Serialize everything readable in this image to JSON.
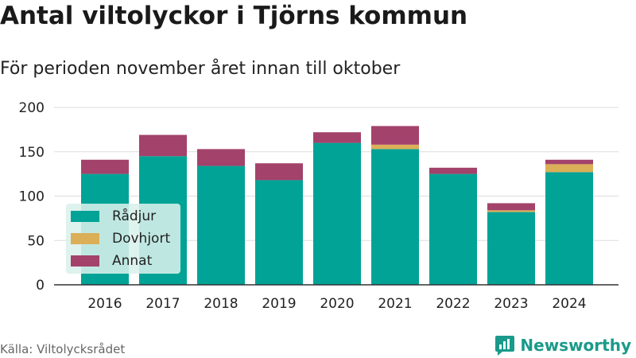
{
  "title": "Antal viltolyckor i Tjörns kommun",
  "subtitle": "För perioden november året innan till oktober",
  "source": "Källa: Viltolycksrådet",
  "brand": "Newsworthy",
  "colors": {
    "radjur": "#00a396",
    "dovhjort": "#dbaf57",
    "annat": "#a3426b",
    "grid": "#dddddd",
    "axis": "#333333",
    "brand": "#1a9a8a"
  },
  "chart_data": {
    "type": "bar",
    "stacked": true,
    "categories": [
      "2016",
      "2017",
      "2018",
      "2019",
      "2020",
      "2021",
      "2022",
      "2023",
      "2024"
    ],
    "series": [
      {
        "name": "Rådjur",
        "color": "#00a396",
        "values": [
          125,
          145,
          134,
          118,
          160,
          153,
          125,
          82,
          127
        ]
      },
      {
        "name": "Dovhjort",
        "color": "#dbaf57",
        "values": [
          0,
          0,
          0,
          0,
          0,
          5,
          0,
          2,
          9
        ]
      },
      {
        "name": "Annat",
        "color": "#a3426b",
        "values": [
          16,
          24,
          19,
          19,
          12,
          21,
          7,
          8,
          5
        ]
      }
    ],
    "ylim": [
      0,
      200
    ],
    "yticks": [
      0,
      50,
      100,
      150,
      200
    ],
    "grid": true,
    "legend_position": "bottom-left"
  }
}
